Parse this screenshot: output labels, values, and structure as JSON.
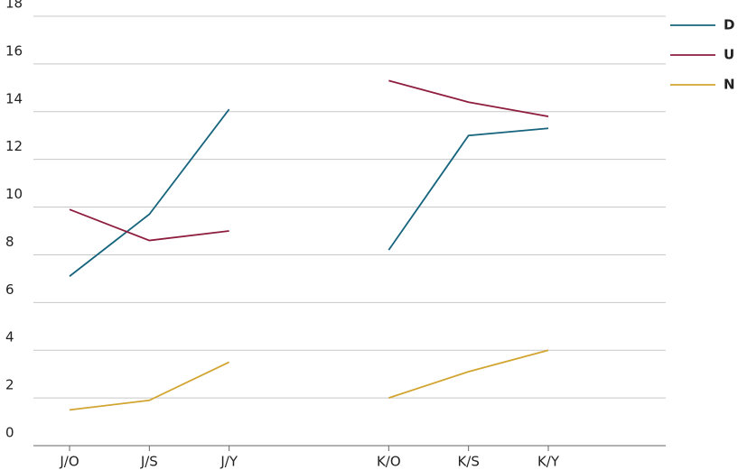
{
  "chart_data": {
    "type": "line",
    "categories": [
      "J/O",
      "J/S",
      "J/Y",
      null,
      "K/O",
      "K/S",
      "K/Y"
    ],
    "series": [
      {
        "name": "D",
        "color": "#16647d",
        "values": [
          7.1,
          9.7,
          14.1,
          null,
          8.2,
          13.0,
          13.3
        ]
      },
      {
        "name": "U",
        "color": "#8e1d3e",
        "values": [
          9.9,
          8.6,
          9.0,
          null,
          15.3,
          14.4,
          13.8
        ]
      },
      {
        "name": "N",
        "color": "#d2a530",
        "values": [
          1.5,
          1.9,
          3.5,
          null,
          2.0,
          3.1,
          4.0
        ]
      }
    ],
    "ylim": [
      0,
      18
    ],
    "yticks": [
      0,
      2,
      4,
      6,
      8,
      10,
      12,
      14,
      16,
      18
    ],
    "grid": true,
    "legend": "top-right"
  }
}
